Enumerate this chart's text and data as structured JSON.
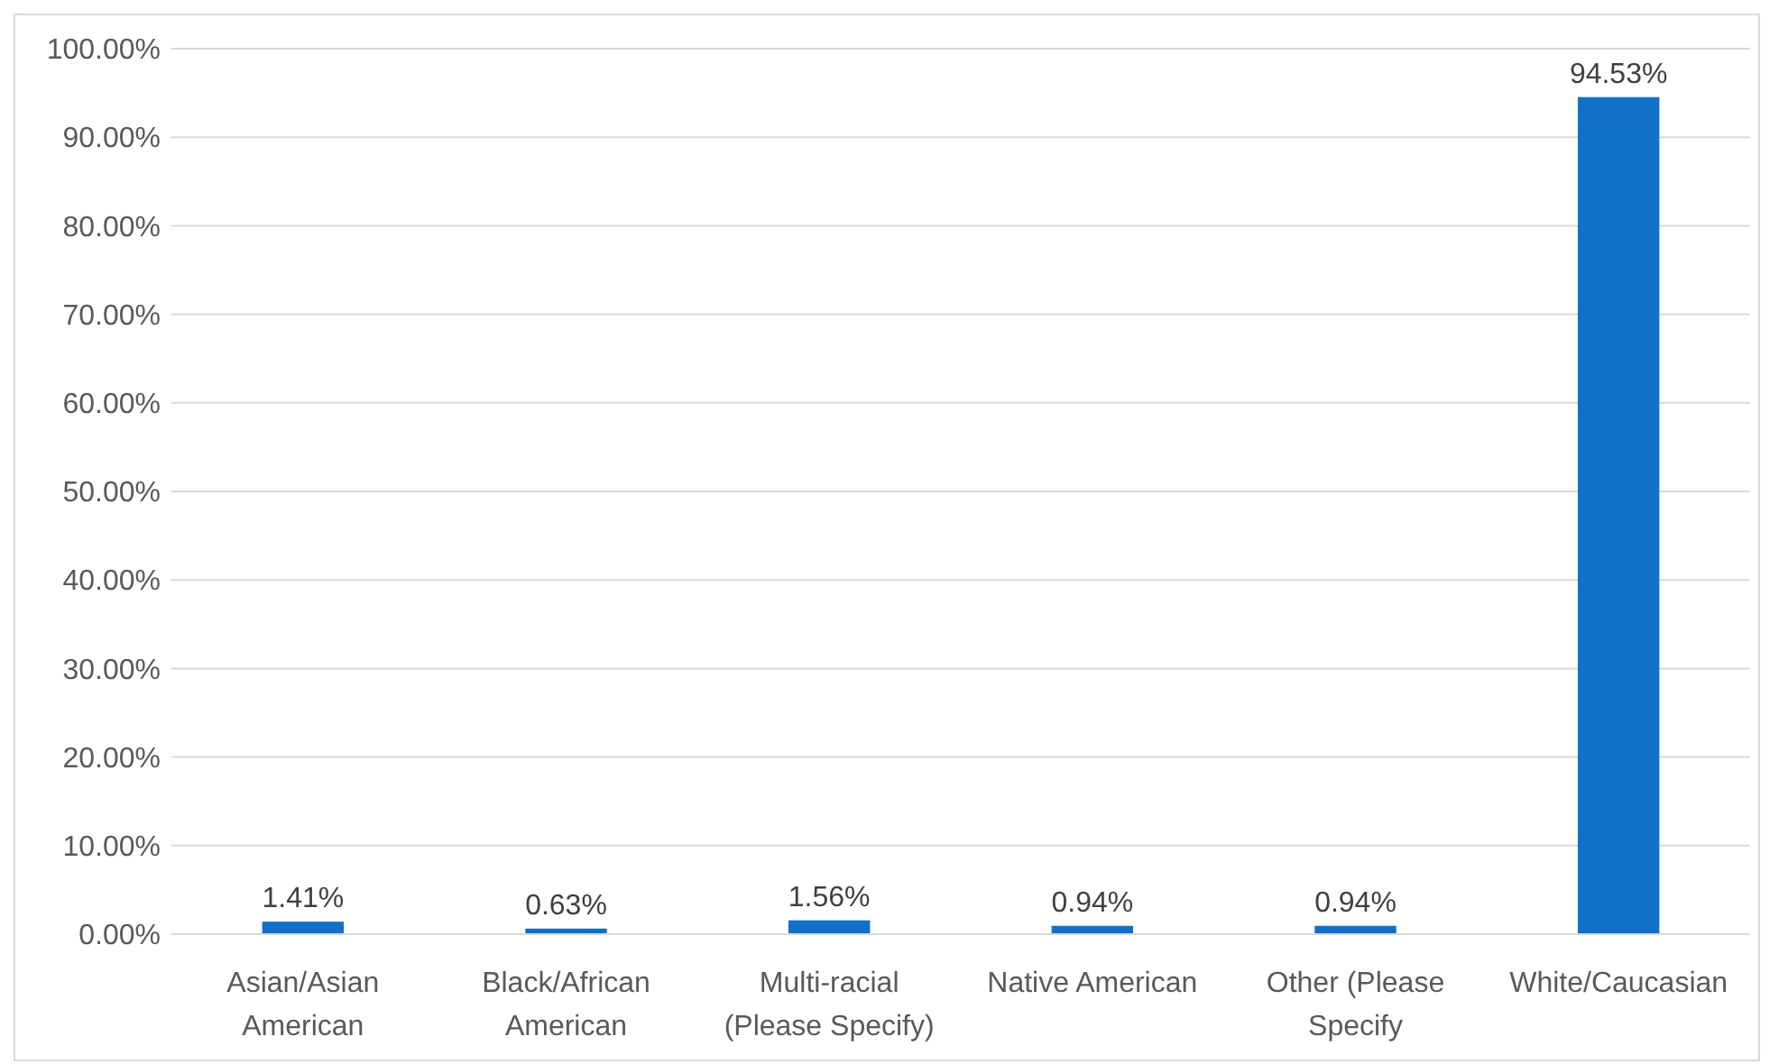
{
  "chart_data": {
    "type": "bar",
    "categories": [
      "Asian/Asian American",
      "Black/African American",
      "Multi-racial (Please Specify)",
      "Native American",
      "Other (Please Specify",
      "White/Caucasian"
    ],
    "values": [
      1.41,
      0.63,
      1.56,
      0.94,
      0.94,
      94.53
    ],
    "value_labels": [
      "1.41%",
      "0.63%",
      "1.56%",
      "0.94%",
      "0.94%",
      "94.53%"
    ],
    "color": "#1170c8",
    "ylim": [
      0,
      100
    ],
    "yticks": [
      {
        "value": 0,
        "label": "0.00%"
      },
      {
        "value": 10,
        "label": "10.00%"
      },
      {
        "value": 20,
        "label": "20.00%"
      },
      {
        "value": 30,
        "label": "30.00%"
      },
      {
        "value": 40,
        "label": "40.00%"
      },
      {
        "value": 50,
        "label": "50.00%"
      },
      {
        "value": 60,
        "label": "60.00%"
      },
      {
        "value": 70,
        "label": "70.00%"
      },
      {
        "value": 80,
        "label": "80.00%"
      },
      {
        "value": 90,
        "label": "90.00%"
      },
      {
        "value": 100,
        "label": "100.00%"
      }
    ],
    "grid": "y"
  }
}
